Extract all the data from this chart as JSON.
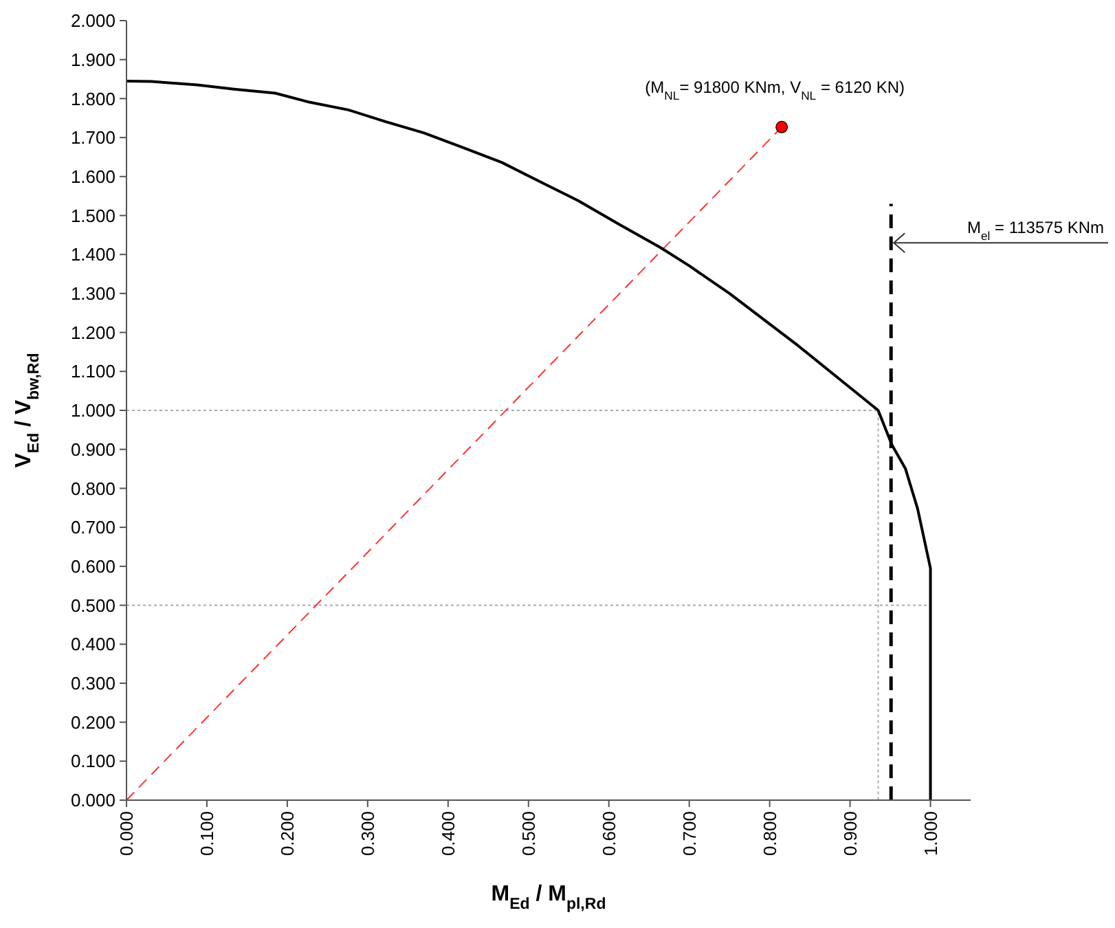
{
  "chart_data": {
    "type": "line",
    "xlabel": "M$_{Ed}$ / M$_{pl,Rd}$",
    "ylabel": "V$_{Ed}$ / V$_{bw,Rd}$",
    "xlim": [
      0,
      1.05
    ],
    "ylim": [
      0,
      2
    ],
    "xticks": [
      {
        "value": 0,
        "label": "0.000"
      },
      {
        "value": 0.1,
        "label": "0.100"
      },
      {
        "value": 0.2,
        "label": "0.200"
      },
      {
        "value": 0.3,
        "label": "0.300"
      },
      {
        "value": 0.4,
        "label": "0.400"
      },
      {
        "value": 0.5,
        "label": "0.500"
      },
      {
        "value": 0.6,
        "label": "0.600"
      },
      {
        "value": 0.7,
        "label": "0.700"
      },
      {
        "value": 0.8,
        "label": "0.800"
      },
      {
        "value": 0.9,
        "label": "0.900"
      },
      {
        "value": 1,
        "label": "1.000"
      }
    ],
    "yticks": [
      {
        "value": 0,
        "label": "0.000"
      },
      {
        "value": 0.1,
        "label": "0.100"
      },
      {
        "value": 0.2,
        "label": "0.200"
      },
      {
        "value": 0.3,
        "label": "0.300"
      },
      {
        "value": 0.4,
        "label": "0.400"
      },
      {
        "value": 0.5,
        "label": "0.500"
      },
      {
        "value": 0.6,
        "label": "0.600"
      },
      {
        "value": 0.7,
        "label": "0.700"
      },
      {
        "value": 0.8,
        "label": "0.800"
      },
      {
        "value": 0.9,
        "label": "0.900"
      },
      {
        "value": 1,
        "label": "1.000"
      },
      {
        "value": 1.1,
        "label": "1.100"
      },
      {
        "value": 1.2,
        "label": "1.200"
      },
      {
        "value": 1.3,
        "label": "1.300"
      },
      {
        "value": 1.4,
        "label": "1.400"
      },
      {
        "value": 1.5,
        "label": "1.500"
      },
      {
        "value": 1.6,
        "label": "1.600"
      },
      {
        "value": 1.7,
        "label": "1.700"
      },
      {
        "value": 1.8,
        "label": "1.800"
      },
      {
        "value": 1.9,
        "label": "1.900"
      },
      {
        "value": 2,
        "label": "2.000"
      }
    ],
    "grid": false,
    "series": [
      {
        "color": "#aaaaaa",
        "line_style": "dotted",
        "marker": "none",
        "x": [
          0,
          0.935,
          0.935
        ],
        "values": [
          1,
          1,
          0
        ]
      },
      {
        "color": "#aaaaaa",
        "line_style": "dotted",
        "marker": "none",
        "x": [
          0,
          1
        ],
        "values": [
          0.5,
          0.5
        ]
      },
      {
        "color": "#ff3333",
        "line_style": "dashed",
        "marker": "none",
        "x": [
          0,
          0.815
        ],
        "values": [
          0,
          1.727
        ]
      },
      {
        "color": "#000000",
        "line_style": "dashed",
        "marker": "none",
        "x": [
          0.951,
          0.951
        ],
        "values": [
          0,
          1.53
        ]
      },
      {
        "color": "#000000",
        "line_style": "solid",
        "marker": "none",
        "x": [
          0,
          0.031,
          0.062,
          0.088,
          0.134,
          0.185,
          0.225,
          0.276,
          0.322,
          0.37,
          0.419,
          0.467,
          0.516,
          0.562,
          0.613,
          0.664,
          0.7,
          0.75,
          0.836,
          0.935,
          0.952,
          0.969,
          0.984,
          1,
          1
        ],
        "values": [
          1.845,
          1.844,
          1.839,
          1.835,
          1.824,
          1.814,
          1.792,
          1.771,
          1.741,
          1.712,
          1.674,
          1.636,
          1.585,
          1.538,
          1.477,
          1.418,
          1.371,
          1.3,
          1.165,
          1.0,
          0.912,
          0.85,
          0.748,
          0.595,
          0
        ]
      },
      {
        "type": "scatter",
        "color": "#ff0000",
        "marker": "circle",
        "x": [
          0.815
        ],
        "values": [
          1.727
        ]
      }
    ],
    "annotations": [
      {
        "text": "(M$_{NL}$=  91800 KNm, V$_{NL}$ = 6120 KN)",
        "x": 0.815,
        "y": 1.727
      },
      {
        "text": "M$_{el}$ = 113575 KNm",
        "x": 0.951,
        "y": 1.43
      }
    ]
  }
}
